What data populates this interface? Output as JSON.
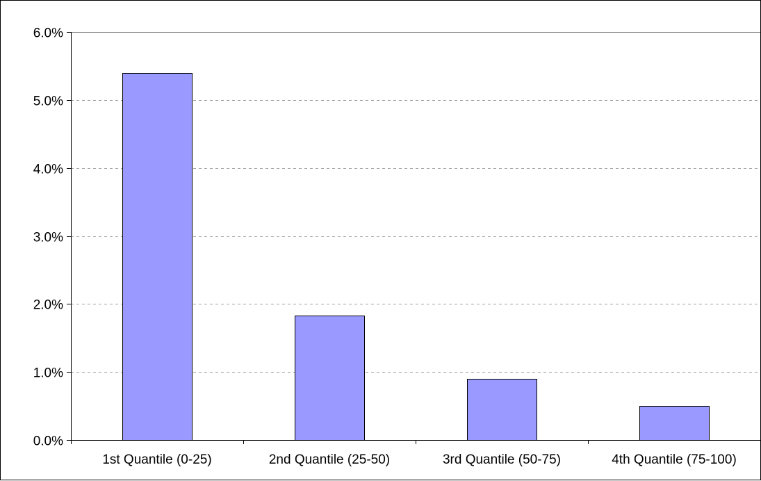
{
  "chart_data": {
    "type": "bar",
    "title": "",
    "xlabel": "",
    "ylabel": "",
    "categories": [
      "1st Quantile (0-25)",
      "2nd Quantile (25-50)",
      "3rd Quantile (50-75)",
      "4th Quantile (75-100)"
    ],
    "values": [
      5.4,
      1.83,
      0.9,
      0.5
    ],
    "unit": "%",
    "ylim": [
      0,
      6
    ],
    "yticks": [
      "0.0%",
      "1.0%",
      "2.0%",
      "3.0%",
      "4.0%",
      "5.0%",
      "6.0%"
    ],
    "grid": true,
    "legend": "none",
    "colors": {
      "bar_fill": "#9999ff",
      "bar_stroke": "#000000",
      "gridline": "#a0a0a0",
      "axis": "#000000"
    }
  }
}
